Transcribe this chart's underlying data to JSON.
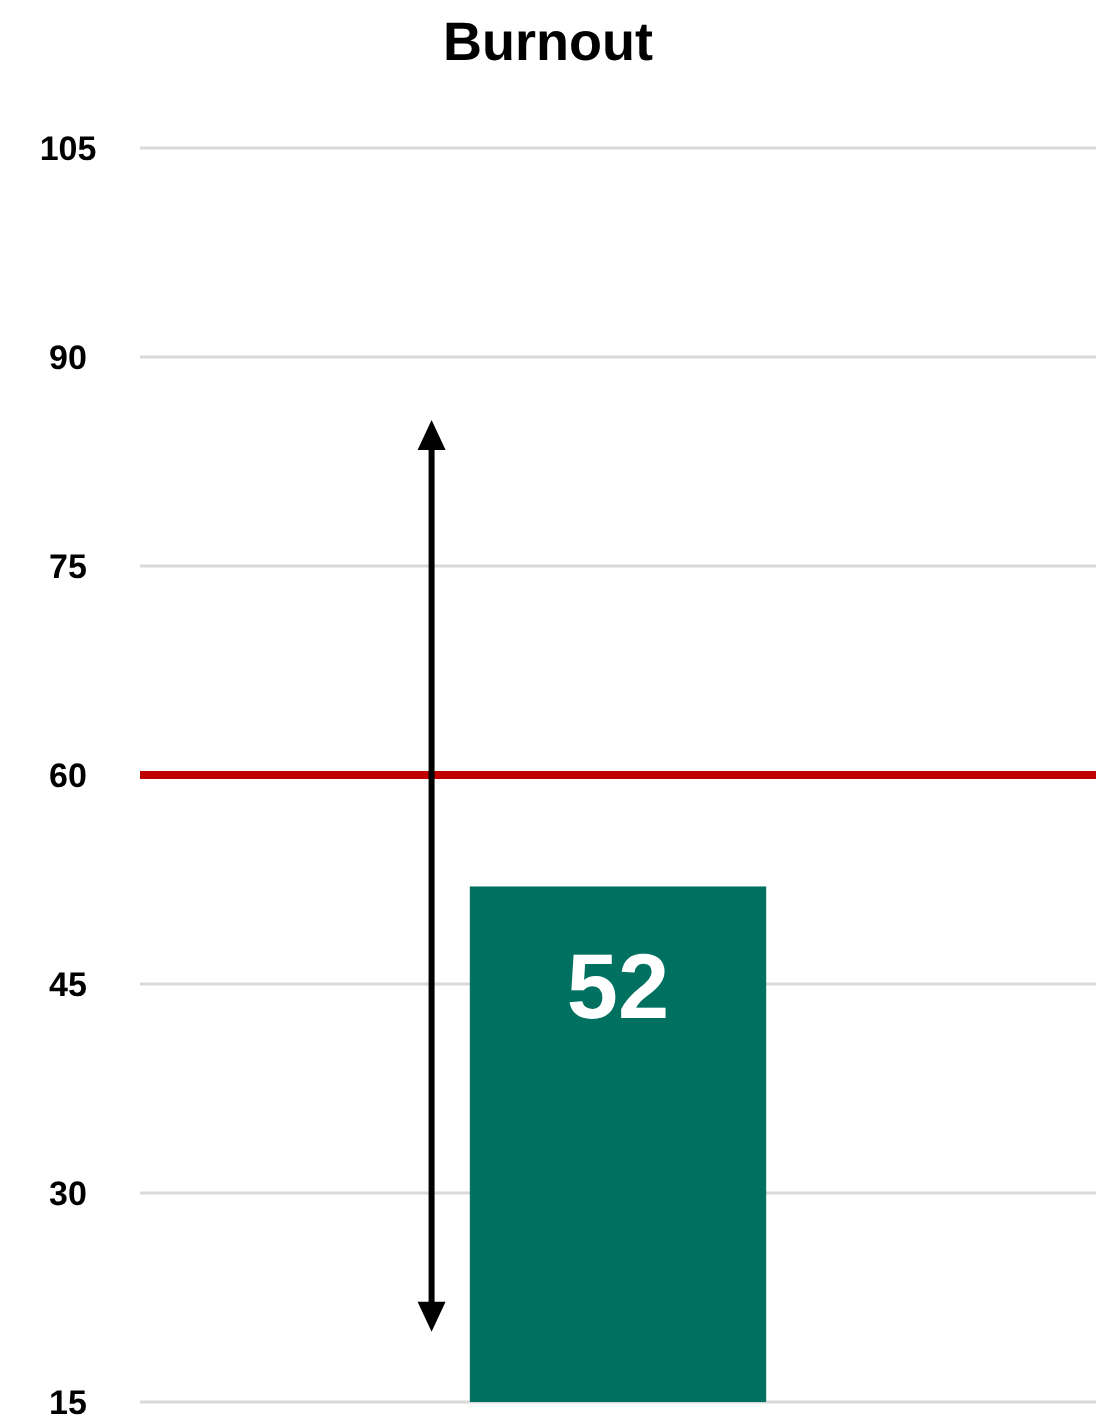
{
  "chart_data": {
    "type": "bar",
    "title": "Burnout",
    "categories": [
      null
    ],
    "values": [
      52
    ],
    "color": "#007161",
    "ylim": [
      15,
      105
    ],
    "yticks": [
      15,
      30,
      45,
      60,
      75,
      90,
      105
    ],
    "grid": "y",
    "data_labels": true,
    "ref_lines": [
      {
        "axis": "y",
        "value": 60,
        "color": "#c00000"
      }
    ]
  }
}
